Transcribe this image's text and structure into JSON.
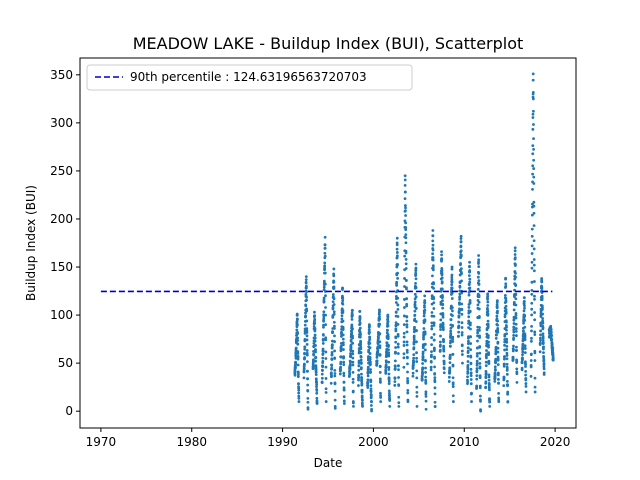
{
  "chart_data": {
    "type": "scatter",
    "title": "MEADOW LAKE - Buildup Index (BUI), Scatterplot",
    "xlabel": "Date",
    "ylabel": "Buildup Index (BUI)",
    "xlim": [
      1967.7,
      2022.3
    ],
    "ylim": [
      -17.5,
      367.5
    ],
    "x_ticks": [
      1970,
      1980,
      1990,
      2000,
      2010,
      2020
    ],
    "y_ticks": [
      0,
      50,
      100,
      150,
      200,
      250,
      300,
      350
    ],
    "grid": false,
    "legend": {
      "placement": "top-left",
      "entries": [
        "90th percentile : 124.63196563720703"
      ]
    },
    "reference_line": {
      "name": "90th percentile : 124.63196563720703",
      "y": 124.63196563720703,
      "x_range": [
        1970,
        2019.7
      ],
      "color": "#0000cc",
      "style": "dashed"
    },
    "series": [
      {
        "color": "#1f77b4",
        "seasons": [
          {
            "year": 1991,
            "peak": 100,
            "min": 10
          },
          {
            "year": 1992,
            "peak": 140,
            "min": 2
          },
          {
            "year": 1993,
            "peak": 103,
            "min": 8
          },
          {
            "year": 1994,
            "peak": 181,
            "min": 10
          },
          {
            "year": 1995,
            "peak": 148,
            "min": 3
          },
          {
            "year": 1996,
            "peak": 128,
            "min": 8
          },
          {
            "year": 1997,
            "peak": 105,
            "min": 5
          },
          {
            "year": 1998,
            "peak": 104,
            "min": 5
          },
          {
            "year": 1999,
            "peak": 90,
            "min": 2
          },
          {
            "year": 2000,
            "peak": 104,
            "min": 10
          },
          {
            "year": 2001,
            "peak": 100,
            "min": 5
          },
          {
            "year": 2002,
            "peak": 180,
            "min": 5
          },
          {
            "year": 2003,
            "peak": 245,
            "min": 10
          },
          {
            "year": 2004,
            "peak": 153,
            "min": 5
          },
          {
            "year": 2005,
            "peak": 120,
            "min": 2
          },
          {
            "year": 2006,
            "peak": 188,
            "min": 5
          },
          {
            "year": 2007,
            "peak": 166,
            "min": 40
          },
          {
            "year": 2008,
            "peak": 150,
            "min": 10
          },
          {
            "year": 2009,
            "peak": 182,
            "min": 50
          },
          {
            "year": 2010,
            "peak": 155,
            "min": 10
          },
          {
            "year": 2011,
            "peak": 162,
            "min": 0
          },
          {
            "year": 2012,
            "peak": 122,
            "min": 5
          },
          {
            "year": 2013,
            "peak": 115,
            "min": 10
          },
          {
            "year": 2014,
            "peak": 138,
            "min": 10
          },
          {
            "year": 2015,
            "peak": 170,
            "min": 30
          },
          {
            "year": 2016,
            "peak": 118,
            "min": 20
          },
          {
            "year": 2017,
            "peak": 351,
            "min": 20
          },
          {
            "year": 2018,
            "peak": 138,
            "min": 40
          },
          {
            "year": 2019,
            "peak": 84,
            "min": 55
          }
        ]
      }
    ]
  }
}
